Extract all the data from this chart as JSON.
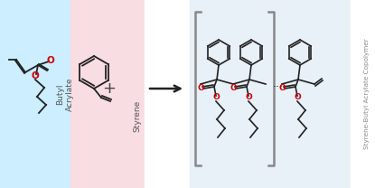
{
  "bg_left_color": "#cceeff",
  "bg_pink_color": "#f8dde2",
  "bg_right_color": "#e8f0f8",
  "bg_white_color": "#ffffff",
  "text_color_dark": "#555555",
  "text_color_label": "#888888",
  "red_color": "#cc0000",
  "bond_color": "#222222",
  "label_butyl": "Butyl\nAcrylate",
  "label_styrene": "Styrene",
  "label_copolymer": "Styrene-Butyl Acrylate Copolymer",
  "fig_width": 4.15,
  "fig_height": 2.08,
  "dpi": 100
}
